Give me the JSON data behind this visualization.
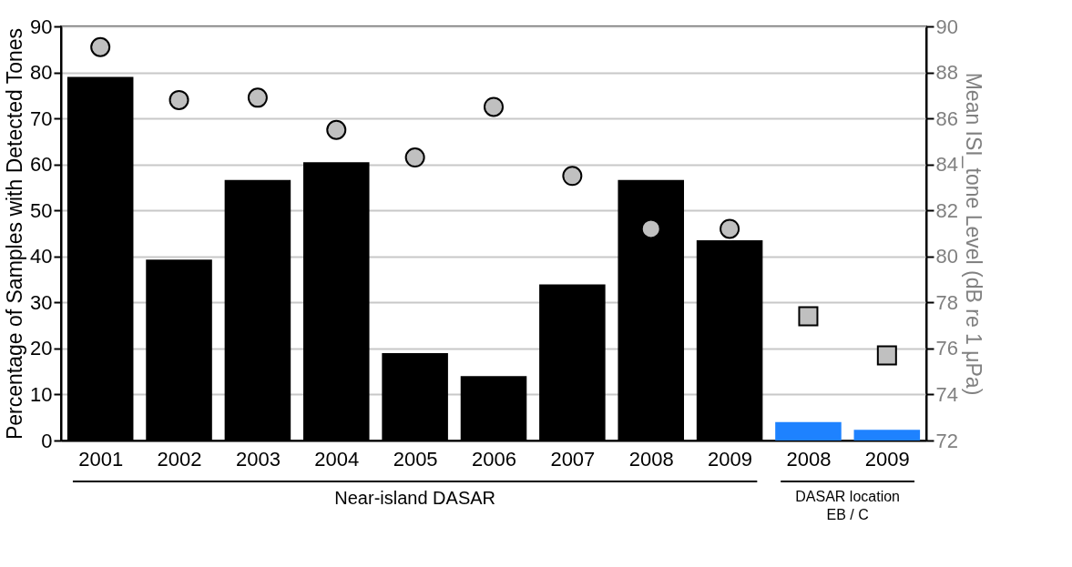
{
  "chart_data": {
    "type": "bar",
    "categories": [
      "2001",
      "2002",
      "2003",
      "2004",
      "2005",
      "2006",
      "2007",
      "2008",
      "2009",
      "2008",
      "2009"
    ],
    "ylabel": "Percentage of Samples with Detected Tones",
    "y2label": "Mean ISI_tone Level (dB re 1 μPa)",
    "ylim": [
      0,
      90
    ],
    "yticks": [
      0,
      10,
      20,
      30,
      40,
      50,
      60,
      70,
      80,
      90
    ],
    "y2lim": [
      72,
      90
    ],
    "y2ticks": [
      72,
      74,
      76,
      78,
      80,
      82,
      84,
      86,
      88,
      90
    ],
    "grid": "y",
    "legend": false,
    "annotations": [
      "Near-island DASAR",
      "DASAR location\nEB / C"
    ],
    "series": [
      {
        "colors": [
          "#000000",
          "#000000",
          "#000000",
          "#000000",
          "#000000",
          "#000000",
          "#000000",
          "#000000",
          "#000000",
          "#1e82ff",
          "#1e82ff"
        ],
        "values": [
          79,
          39.3,
          56.6,
          60.5,
          19,
          14,
          33.9,
          56.6,
          43.5,
          4,
          2.3
        ]
      },
      {
        "type": "scatter",
        "axis": "y2",
        "marker": "circle",
        "color": "#c0c0c0",
        "values": [
          89.1,
          86.8,
          86.9,
          85.5,
          84.3,
          86.5,
          83.5,
          81.2,
          81.2,
          null,
          null
        ]
      },
      {
        "type": "scatter",
        "axis": "y2",
        "marker": "square",
        "color": "#c0c0c0",
        "values": [
          null,
          null,
          null,
          null,
          null,
          null,
          null,
          null,
          null,
          77.4,
          75.7
        ]
      }
    ]
  }
}
